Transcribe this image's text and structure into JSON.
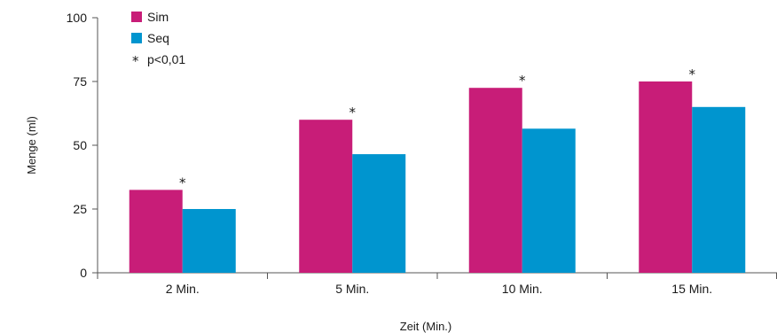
{
  "chart_data": {
    "type": "bar",
    "categories": [
      "2 Min.",
      "5 Min.",
      "10 Min.",
      "15 Min."
    ],
    "series": [
      {
        "name": "Sim",
        "color": "#c81d78",
        "values": [
          32.5,
          60,
          72.5,
          75
        ]
      },
      {
        "name": "Seq",
        "color": "#0095cf",
        "values": [
          25,
          46.5,
          56.5,
          65
        ]
      }
    ],
    "significant": [
      true,
      true,
      true,
      true
    ],
    "significance_marker": "*",
    "significance_label": "p<0,01",
    "xlabel": "Zeit (Min.)",
    "ylabel": "Menge (ml)",
    "ylim": [
      0,
      100
    ],
    "yticks": [
      "0",
      "25",
      "50",
      "75",
      "100"
    ],
    "ytick_values": [
      0,
      25,
      50,
      75,
      100
    ],
    "legend_position": "top-left",
    "grid": false
  }
}
